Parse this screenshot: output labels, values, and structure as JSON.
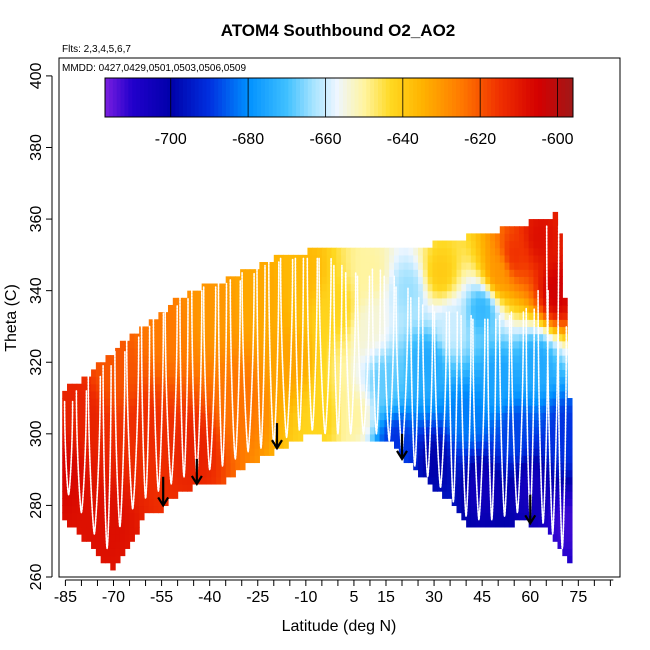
{
  "chart_data": {
    "type": "heatmap",
    "title": "ATOM4 Southbound O2_AO2",
    "flights_label": "Flts: 2,3,4,5,6,7",
    "dates_label": "MMDD: 0427,0429,0501,0503,0506,0509",
    "xlabel": "Latitude (deg N)",
    "ylabel": "Theta (C)",
    "xlim": [
      -87,
      88
    ],
    "ylim": [
      260,
      405
    ],
    "x_ticks": [
      -85,
      -70,
      -55,
      -40,
      -25,
      -10,
      5,
      15,
      30,
      45,
      60,
      75
    ],
    "x_minor_step": 5,
    "y_ticks": [
      260,
      280,
      300,
      320,
      340,
      360,
      380,
      400
    ],
    "colorbar": {
      "range": [
        -717,
        -596
      ],
      "ticks": [
        -700,
        -680,
        -660,
        -640,
        -620,
        -600
      ],
      "stops": [
        {
          "value": -717,
          "color": "#7b1fe0"
        },
        {
          "value": -710,
          "color": "#2200cc"
        },
        {
          "value": -700,
          "color": "#0000aa"
        },
        {
          "value": -690,
          "color": "#0030e0"
        },
        {
          "value": -680,
          "color": "#0090ff"
        },
        {
          "value": -670,
          "color": "#40c0ff"
        },
        {
          "value": -663,
          "color": "#a8e4ff"
        },
        {
          "value": -657,
          "color": "#eef6ff"
        },
        {
          "value": -650,
          "color": "#fff4a0"
        },
        {
          "value": -643,
          "color": "#ffd820"
        },
        {
          "value": -635,
          "color": "#ffb300"
        },
        {
          "value": -625,
          "color": "#ff7a00"
        },
        {
          "value": -615,
          "color": "#f03000"
        },
        {
          "value": -605,
          "color": "#d40000"
        },
        {
          "value": -596,
          "color": "#a01818"
        }
      ]
    },
    "boundary": {
      "lat": [
        -86,
        -80,
        -75,
        -70,
        -65,
        -60,
        -55,
        -50,
        -45,
        -40,
        -35,
        -30,
        -25,
        -20,
        -15,
        -10,
        -5,
        0,
        5,
        10,
        15,
        20,
        25,
        30,
        35,
        40,
        45,
        50,
        55,
        60,
        65,
        68,
        70,
        72
      ],
      "theta_bottom": [
        278,
        272,
        268,
        262,
        270,
        278,
        280,
        284,
        286,
        286,
        288,
        291,
        294,
        296,
        298,
        301,
        300,
        299,
        299,
        299,
        300,
        295,
        290,
        286,
        282,
        275,
        274,
        275,
        276,
        276,
        274,
        270,
        267,
        265
      ],
      "theta_top": [
        311,
        314,
        318,
        322,
        326,
        329,
        333,
        337,
        339,
        341,
        342,
        344,
        346,
        348,
        349,
        350,
        351,
        352,
        352,
        351,
        351,
        351,
        351,
        352,
        353,
        354,
        355,
        356,
        357,
        358,
        359,
        361,
        352,
        310
      ]
    },
    "anchor_points": [
      {
        "lat": -86,
        "theta": 290,
        "value": -606
      },
      {
        "lat": -80,
        "theta": 305,
        "value": -612
      },
      {
        "lat": -72,
        "theta": 275,
        "value": -608
      },
      {
        "lat": -70,
        "theta": 318,
        "value": -620
      },
      {
        "lat": -60,
        "theta": 300,
        "value": -614
      },
      {
        "lat": -55,
        "theta": 330,
        "value": -625
      },
      {
        "lat": -45,
        "theta": 295,
        "value": -612
      },
      {
        "lat": -40,
        "theta": 335,
        "value": -630
      },
      {
        "lat": -30,
        "theta": 310,
        "value": -624
      },
      {
        "lat": -25,
        "theta": 340,
        "value": -633
      },
      {
        "lat": -15,
        "theta": 320,
        "value": -632
      },
      {
        "lat": -10,
        "theta": 345,
        "value": -636
      },
      {
        "lat": -5,
        "theta": 305,
        "value": -642
      },
      {
        "lat": 0,
        "theta": 335,
        "value": -642
      },
      {
        "lat": 5,
        "theta": 305,
        "value": -650
      },
      {
        "lat": 10,
        "theta": 330,
        "value": -654
      },
      {
        "lat": 10,
        "theta": 345,
        "value": -650
      },
      {
        "lat": 15,
        "theta": 315,
        "value": -668
      },
      {
        "lat": 18,
        "theta": 298,
        "value": -690
      },
      {
        "lat": 22,
        "theta": 340,
        "value": -664
      },
      {
        "lat": 28,
        "theta": 320,
        "value": -675
      },
      {
        "lat": 30,
        "theta": 292,
        "value": -700
      },
      {
        "lat": 32,
        "theta": 345,
        "value": -640
      },
      {
        "lat": 35,
        "theta": 330,
        "value": -660
      },
      {
        "lat": 40,
        "theta": 305,
        "value": -682
      },
      {
        "lat": 45,
        "theta": 285,
        "value": -705
      },
      {
        "lat": 45,
        "theta": 335,
        "value": -672
      },
      {
        "lat": 50,
        "theta": 345,
        "value": -630
      },
      {
        "lat": 50,
        "theta": 315,
        "value": -676
      },
      {
        "lat": 55,
        "theta": 300,
        "value": -688
      },
      {
        "lat": 55,
        "theta": 350,
        "value": -615
      },
      {
        "lat": 60,
        "theta": 285,
        "value": -706
      },
      {
        "lat": 62,
        "theta": 320,
        "value": -675
      },
      {
        "lat": 63,
        "theta": 355,
        "value": -608
      },
      {
        "lat": 68,
        "theta": 340,
        "value": -604
      },
      {
        "lat": 70,
        "theta": 300,
        "value": -690
      },
      {
        "lat": 71,
        "theta": 275,
        "value": -712
      }
    ],
    "profiles": [
      {
        "lat": -84,
        "theta_min": 283,
        "theta_max": 309
      },
      {
        "lat": -80,
        "theta_min": 278,
        "theta_max": 312
      },
      {
        "lat": -76,
        "theta_min": 272,
        "theta_max": 316
      },
      {
        "lat": -72,
        "theta_min": 268,
        "theta_max": 319
      },
      {
        "lat": -68,
        "theta_min": 274,
        "theta_max": 323
      },
      {
        "lat": -64,
        "theta_min": 279,
        "theta_max": 327
      },
      {
        "lat": -60,
        "theta_min": 282,
        "theta_max": 330
      },
      {
        "lat": -56,
        "theta_min": 284,
        "theta_max": 334
      },
      {
        "lat": -52,
        "theta_min": 286,
        "theta_max": 336
      },
      {
        "lat": -48,
        "theta_min": 288,
        "theta_max": 338
      },
      {
        "lat": -44,
        "theta_min": 289,
        "theta_max": 340
      },
      {
        "lat": -40,
        "theta_min": 290,
        "theta_max": 341
      },
      {
        "lat": -36,
        "theta_min": 291,
        "theta_max": 342
      },
      {
        "lat": -32,
        "theta_min": 293,
        "theta_max": 343
      },
      {
        "lat": -28,
        "theta_min": 295,
        "theta_max": 345
      },
      {
        "lat": -24,
        "theta_min": 296,
        "theta_max": 347
      },
      {
        "lat": -20,
        "theta_min": 297,
        "theta_max": 348
      },
      {
        "lat": -16,
        "theta_min": 299,
        "theta_max": 349
      },
      {
        "lat": -12,
        "theta_min": 301,
        "theta_max": 349
      },
      {
        "lat": -8,
        "theta_min": 301,
        "theta_max": 349
      },
      {
        "lat": -4,
        "theta_min": 300,
        "theta_max": 349
      },
      {
        "lat": 0,
        "theta_min": 300,
        "theta_max": 347
      },
      {
        "lat": 4,
        "theta_min": 300,
        "theta_max": 345
      },
      {
        "lat": 8,
        "theta_min": 300,
        "theta_max": 344
      },
      {
        "lat": 12,
        "theta_min": 300,
        "theta_max": 346
      },
      {
        "lat": 16,
        "theta_min": 298,
        "theta_max": 344
      },
      {
        "lat": 20,
        "theta_min": 295,
        "theta_max": 341
      },
      {
        "lat": 24,
        "theta_min": 291,
        "theta_max": 338
      },
      {
        "lat": 28,
        "theta_min": 288,
        "theta_max": 336
      },
      {
        "lat": 32,
        "theta_min": 285,
        "theta_max": 334
      },
      {
        "lat": 36,
        "theta_min": 281,
        "theta_max": 334
      },
      {
        "lat": 40,
        "theta_min": 277,
        "theta_max": 333
      },
      {
        "lat": 44,
        "theta_min": 276,
        "theta_max": 332
      },
      {
        "lat": 48,
        "theta_min": 276,
        "theta_max": 332
      },
      {
        "lat": 52,
        "theta_min": 277,
        "theta_max": 333
      },
      {
        "lat": 56,
        "theta_min": 278,
        "theta_max": 334
      },
      {
        "lat": 60,
        "theta_min": 277,
        "theta_max": 335
      },
      {
        "lat": 64,
        "theta_min": 275,
        "theta_max": 340
      },
      {
        "lat": 67,
        "theta_min": 272,
        "theta_max": 358
      },
      {
        "lat": 70,
        "theta_min": 268,
        "theta_max": 330
      }
    ],
    "arrows": [
      {
        "lat": -54.5,
        "theta_top": 288,
        "theta_tip": 280
      },
      {
        "lat": -44,
        "theta_top": 293,
        "theta_tip": 286
      },
      {
        "lat": -19,
        "theta_top": 303,
        "theta_tip": 296
      },
      {
        "lat": 20,
        "theta_top": 300,
        "theta_tip": 293
      },
      {
        "lat": 60,
        "theta_top": 283,
        "theta_tip": 275
      }
    ]
  }
}
